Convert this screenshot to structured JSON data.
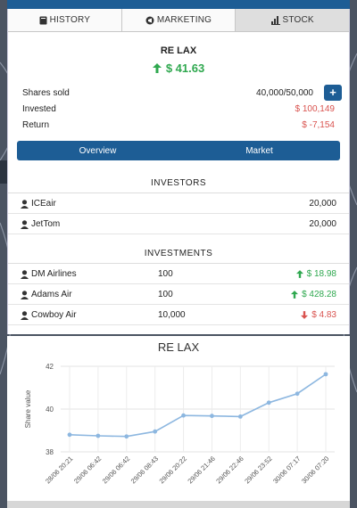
{
  "tabs": [
    {
      "label": "HISTORY",
      "icon": "book-icon"
    },
    {
      "label": "MARKETING",
      "icon": "megaphone-icon"
    },
    {
      "label": "STOCK",
      "icon": "bar-chart-icon"
    }
  ],
  "stock": {
    "title": "RE LAX",
    "price": "$ 41.63",
    "shares_sold_label": "Shares sold",
    "shares_sold_value": "40,000/50,000",
    "invested_label": "Invested",
    "invested_value": "$ 100,149",
    "return_label": "Return",
    "return_value": "$ -7,154",
    "buy_button": "+"
  },
  "segments": [
    "Overview",
    "Market"
  ],
  "investors": {
    "heading": "INVESTORS",
    "rows": [
      {
        "name": "ICEair",
        "amount": "20,000"
      },
      {
        "name": "JetTom",
        "amount": "20,000"
      }
    ]
  },
  "investments": {
    "heading": "INVESTMENTS",
    "rows": [
      {
        "name": "DM Airlines",
        "shares": "100",
        "value": "$ 18.98",
        "trend": "up"
      },
      {
        "name": "Adams Air",
        "shares": "100",
        "value": "$ 428.28",
        "trend": "up"
      },
      {
        "name": "Cowboy Air",
        "shares": "10,000",
        "value": "$ 4.83",
        "trend": "down"
      }
    ]
  },
  "colors": {
    "accent": "#1d5d95",
    "up": "#2fa84f",
    "down": "#d9534f",
    "line": "#8db7e0"
  },
  "chart_data": {
    "type": "line",
    "title": "RE LAX",
    "ylabel": "Share value",
    "xlabel": "",
    "ylim": [
      38,
      42
    ],
    "yticks": [
      38,
      40,
      42
    ],
    "categories": [
      "28/06 20:21",
      "29/06 06:42",
      "29/06 06:42",
      "29/06 08:43",
      "29/06 20:22",
      "29/06 21:46",
      "29/06 22:46",
      "29/06 23:52",
      "30/06 07:17",
      "30/06 07:20"
    ],
    "series": [
      {
        "values": [
          38.8,
          38.75,
          38.72,
          38.95,
          39.7,
          39.68,
          39.65,
          40.3,
          40.72,
          41.63
        ]
      }
    ],
    "grid": true
  }
}
